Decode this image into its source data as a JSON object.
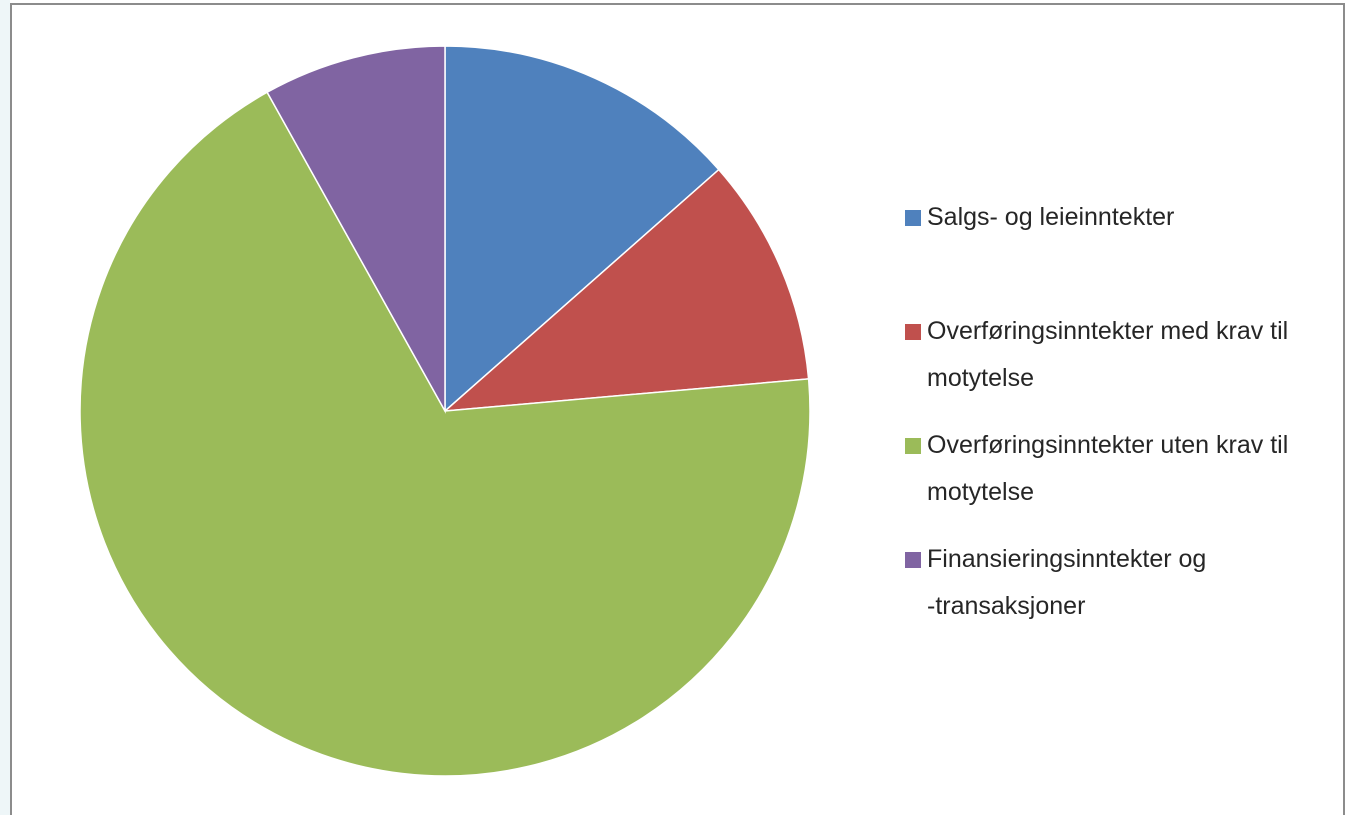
{
  "chart_data": {
    "type": "pie",
    "categories": [
      "Salgs- og leieinntekter",
      "Overføringsinntekter med krav til motytelse",
      "Overføringsinntekter uten krav til motytelse",
      "Finansieringsinntekter og -transaksjoner"
    ],
    "values": [
      13.5,
      10.1,
      68.3,
      8.1
    ],
    "colors": [
      "#4f81bd",
      "#c0504d",
      "#9bbb59",
      "#8064a2"
    ],
    "legend": "right"
  }
}
